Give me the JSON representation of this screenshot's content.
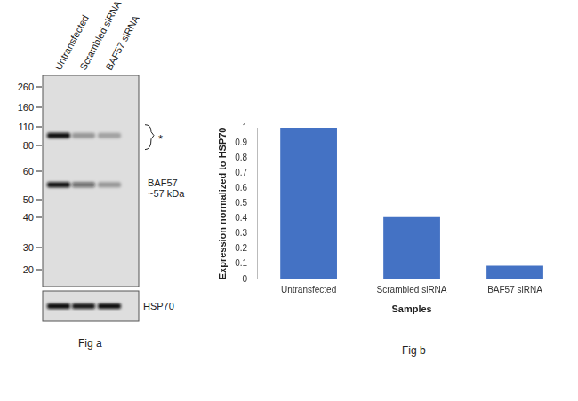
{
  "figure_a": {
    "caption": "Fig a",
    "lanes": [
      "Untransfected",
      "Scrambled siRNA",
      "BAF57 siRNA"
    ],
    "markers": [
      260,
      160,
      110,
      80,
      60,
      50,
      40,
      30,
      20
    ],
    "bands": [
      {
        "label": "*",
        "mw": 95,
        "intensities": [
          1,
          0.32,
          0.28
        ]
      },
      {
        "label": "BAF57\n~57 kDa",
        "mw": 55,
        "intensities": [
          1,
          0.55,
          0.32
        ]
      }
    ],
    "loading_control": {
      "label": "HSP70",
      "intensities": [
        1,
        0.95,
        1
      ]
    }
  },
  "chart_data": {
    "type": "bar",
    "caption": "Fig b",
    "xlabel": "Samples",
    "ylabel": "Expression normalized to HSP70",
    "categories": [
      "Untransfected",
      "Scrambled siRNA",
      "BAF57 siRNA"
    ],
    "values": [
      1,
      0.41,
      0.09
    ],
    "color": "#4472c4",
    "ylim": [
      0,
      1
    ],
    "yticks": [
      0,
      0.1,
      0.2,
      0.3,
      0.4,
      0.5,
      0.6,
      0.7,
      0.8,
      0.9,
      1
    ],
    "grid": false
  }
}
